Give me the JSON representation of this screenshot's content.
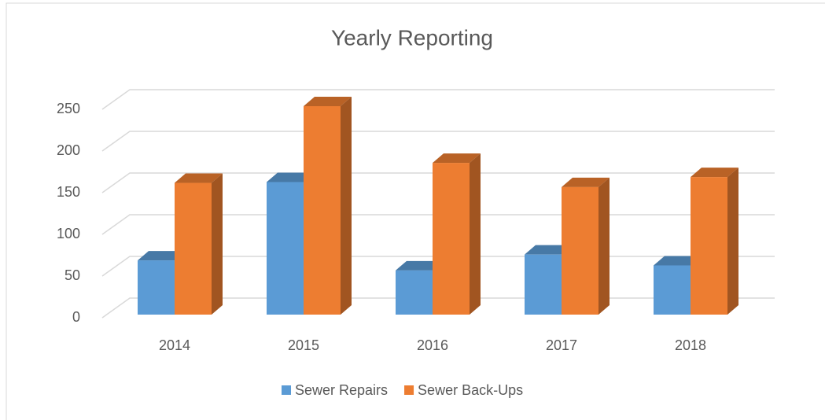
{
  "chart_data": {
    "type": "bar3d",
    "title": "Yearly Reporting",
    "categories": [
      "2014",
      "2015",
      "2016",
      "2017",
      "2018"
    ],
    "series": [
      {
        "name": "Sewer Repairs",
        "color": "#5b9bd5",
        "values": [
          65,
          159,
          53,
          72,
          59
        ]
      },
      {
        "name": "Sewer Back-Ups",
        "color": "#ed7d31",
        "values": [
          158,
          250,
          182,
          153,
          165
        ]
      }
    ],
    "ylim": [
      0,
      250
    ],
    "yticks": [
      0,
      50,
      100,
      150,
      200,
      250
    ],
    "grid": true,
    "legend": "bottom"
  }
}
